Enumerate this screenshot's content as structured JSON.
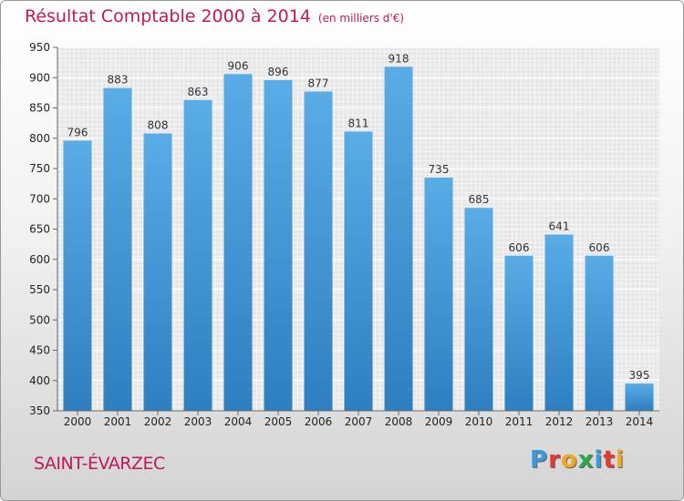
{
  "chart_data": {
    "type": "bar",
    "title": "Résultat Comptable 2000 à 2014",
    "subtitle": "(en milliers d'€)",
    "categories": [
      "2000",
      "2001",
      "2002",
      "2003",
      "2004",
      "2005",
      "2006",
      "2007",
      "2008",
      "2009",
      "2010",
      "2011",
      "2012",
      "2013",
      "2014"
    ],
    "values": [
      796,
      883,
      808,
      863,
      906,
      896,
      877,
      811,
      918,
      735,
      685,
      606,
      641,
      606,
      395
    ],
    "ylim": [
      350,
      950
    ],
    "yticks": [
      "350",
      "400",
      "450",
      "500",
      "550",
      "600",
      "650",
      "700",
      "750",
      "800",
      "850",
      "900",
      "950"
    ],
    "xlabel": "",
    "ylabel": "",
    "grid": true,
    "colors": {
      "bar_top": "#5aace6",
      "bar_bottom": "#2d7fc0",
      "title": "#c2185b"
    }
  },
  "footer": {
    "commune": "SAINT-ÉVARZEC",
    "logo_letters": [
      "P",
      "r",
      "o",
      "x",
      "i",
      "t",
      "i"
    ],
    "logo_colors": [
      "#3a9ad9",
      "#e53935",
      "#f5a623",
      "#2aa84a",
      "#3a9ad9",
      "#e53935",
      "#f5a623"
    ]
  }
}
